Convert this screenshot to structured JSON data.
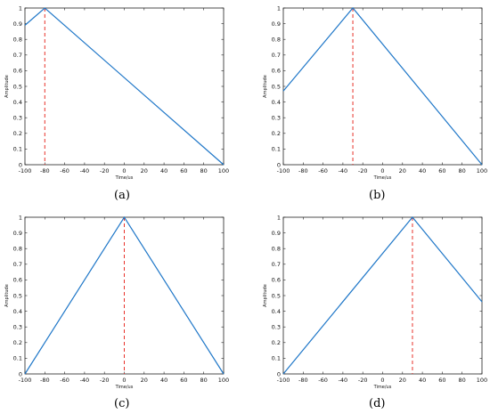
{
  "chart_data": [
    {
      "type": "line",
      "panel_label": "a",
      "title": "",
      "xlabel": "Time/us",
      "ylabel": "Amplitude",
      "xlim": [
        -100,
        100
      ],
      "ylim": [
        0,
        1
      ],
      "xticks": [
        -100,
        -80,
        -60,
        -40,
        -20,
        0,
        20,
        40,
        60,
        80,
        100
      ],
      "yticks": [
        0,
        0.1,
        0.2,
        0.3,
        0.4,
        0.5,
        0.6,
        0.7,
        0.8,
        0.9,
        1
      ],
      "grid": false,
      "series": [
        {
          "x": [
            -100,
            -80,
            100
          ],
          "y": [
            0.89,
            1.0,
            0.0
          ],
          "color": "#1f77c8"
        }
      ],
      "marker_line": {
        "x": -80,
        "color": "#e8312a",
        "style": "dashed"
      }
    },
    {
      "type": "line",
      "panel_label": "b",
      "title": "",
      "xlabel": "Time/us",
      "ylabel": "Amplitude",
      "xlim": [
        -100,
        100
      ],
      "ylim": [
        0,
        1
      ],
      "xticks": [
        -100,
        -80,
        -60,
        -40,
        -20,
        0,
        20,
        40,
        60,
        80,
        100
      ],
      "yticks": [
        0,
        0.1,
        0.2,
        0.3,
        0.4,
        0.5,
        0.6,
        0.7,
        0.8,
        0.9,
        1
      ],
      "grid": false,
      "series": [
        {
          "x": [
            -100,
            -30,
            100
          ],
          "y": [
            0.47,
            1.0,
            0.0
          ],
          "color": "#1f77c8"
        }
      ],
      "marker_line": {
        "x": -30,
        "color": "#e8312a",
        "style": "dashed"
      }
    },
    {
      "type": "line",
      "panel_label": "c",
      "title": "",
      "xlabel": "Time/us",
      "ylabel": "Amplitude",
      "xlim": [
        -100,
        100
      ],
      "ylim": [
        0,
        1
      ],
      "xticks": [
        -100,
        -80,
        -60,
        -40,
        -20,
        0,
        20,
        40,
        60,
        80,
        100
      ],
      "yticks": [
        0,
        0.1,
        0.2,
        0.3,
        0.4,
        0.5,
        0.6,
        0.7,
        0.8,
        0.9,
        1
      ],
      "grid": false,
      "series": [
        {
          "x": [
            -100,
            0,
            100
          ],
          "y": [
            0.0,
            1.0,
            0.0
          ],
          "color": "#1f77c8"
        }
      ],
      "marker_line": {
        "x": 0,
        "color": "#e8312a",
        "style": "dashed"
      }
    },
    {
      "type": "line",
      "panel_label": "d",
      "title": "",
      "xlabel": "Time/us",
      "ylabel": "Amplitude",
      "xlim": [
        -100,
        100
      ],
      "ylim": [
        0,
        1
      ],
      "xticks": [
        -100,
        -80,
        -60,
        -40,
        -20,
        0,
        20,
        40,
        60,
        80,
        100
      ],
      "yticks": [
        0,
        0.1,
        0.2,
        0.3,
        0.4,
        0.5,
        0.6,
        0.7,
        0.8,
        0.9,
        1
      ],
      "grid": false,
      "series": [
        {
          "x": [
            -100,
            30,
            100
          ],
          "y": [
            0.0,
            1.0,
            0.46
          ],
          "color": "#1f77c8"
        }
      ],
      "marker_line": {
        "x": 30,
        "color": "#e8312a",
        "style": "dashed"
      }
    }
  ],
  "labels": {
    "a": "(a)",
    "b": "(b)",
    "c": "(c)",
    "d": "(d)"
  }
}
